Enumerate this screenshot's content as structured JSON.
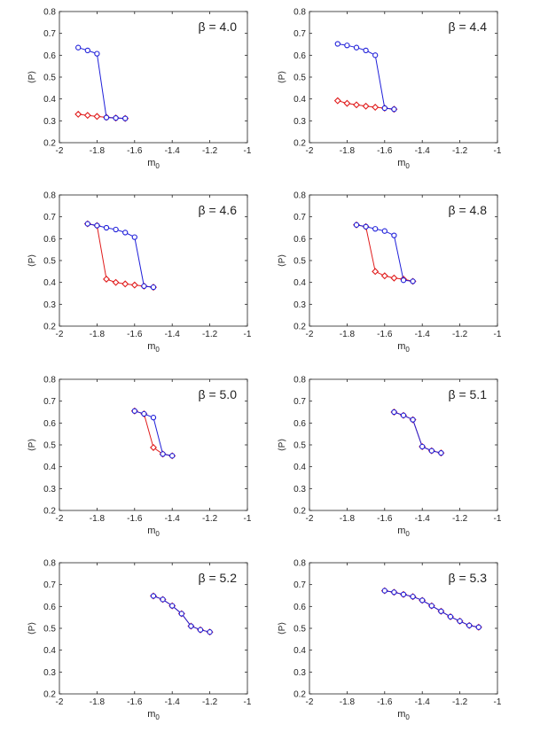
{
  "figure": {
    "xlabel": "m",
    "xlabel_sub": "0",
    "ylabel": "⟨P⟩",
    "xlim": [
      -2,
      -1
    ],
    "ylim": [
      0.2,
      0.8
    ],
    "xticks": [
      -2,
      -1.8,
      -1.6,
      -1.4,
      -1.2,
      -1
    ],
    "xtick_labels": [
      "-2",
      "-1.8",
      "-1.6",
      "-1.4",
      "-1.2",
      "-1"
    ],
    "yticks": [
      0.2,
      0.3,
      0.4,
      0.5,
      0.6,
      0.7,
      0.8
    ],
    "ytick_labels": [
      "0.2",
      "0.3",
      "0.4",
      "0.5",
      "0.6",
      "0.7",
      "0.8"
    ],
    "colors": {
      "blue_series": "#1f1fd9",
      "red_series": "#e01b1b",
      "axes": "#222222"
    }
  },
  "chart_data": [
    {
      "type": "line",
      "title": "β = 4.0",
      "beta": "β = 4.0",
      "xlabel": "m0",
      "ylabel": "⟨P⟩",
      "xlim": [
        -2,
        -1
      ],
      "ylim": [
        0.2,
        0.8
      ],
      "series": [
        {
          "name": "blue-circles",
          "marker": "circle",
          "color": "#1f1fd9",
          "x": [
            -1.9,
            -1.85,
            -1.8,
            -1.75,
            -1.7,
            -1.65
          ],
          "y": [
            0.635,
            0.622,
            0.607,
            0.315,
            0.313,
            0.311
          ]
        },
        {
          "name": "red-diamonds",
          "marker": "diamond",
          "color": "#e01b1b",
          "x": [
            -1.9,
            -1.85,
            -1.8,
            -1.75,
            -1.7,
            -1.65
          ],
          "y": [
            0.33,
            0.325,
            0.32,
            0.316,
            0.313,
            0.311
          ]
        }
      ]
    },
    {
      "type": "line",
      "title": "β = 4.4",
      "beta": "β = 4.4",
      "xlabel": "m0",
      "ylabel": "⟨P⟩",
      "xlim": [
        -2,
        -1
      ],
      "ylim": [
        0.2,
        0.8
      ],
      "series": [
        {
          "name": "blue-circles",
          "marker": "circle",
          "color": "#1f1fd9",
          "x": [
            -1.85,
            -1.8,
            -1.75,
            -1.7,
            -1.65,
            -1.6,
            -1.55
          ],
          "y": [
            0.652,
            0.645,
            0.635,
            0.622,
            0.6,
            0.358,
            0.353
          ]
        },
        {
          "name": "red-diamonds",
          "marker": "diamond",
          "color": "#e01b1b",
          "x": [
            -1.85,
            -1.8,
            -1.75,
            -1.7,
            -1.65,
            -1.6,
            -1.55
          ],
          "y": [
            0.392,
            0.38,
            0.373,
            0.367,
            0.362,
            0.358,
            0.353
          ]
        }
      ]
    },
    {
      "type": "line",
      "title": "β = 4.6",
      "beta": "β = 4.6",
      "xlabel": "m0",
      "ylabel": "⟨P⟩",
      "xlim": [
        -2,
        -1
      ],
      "ylim": [
        0.2,
        0.8
      ],
      "series": [
        {
          "name": "blue-circles",
          "marker": "circle",
          "color": "#1f1fd9",
          "x": [
            -1.85,
            -1.8,
            -1.75,
            -1.7,
            -1.65,
            -1.6,
            -1.55,
            -1.5
          ],
          "y": [
            0.668,
            0.66,
            0.65,
            0.642,
            0.628,
            0.607,
            0.383,
            0.378
          ]
        },
        {
          "name": "red-diamonds",
          "marker": "diamond",
          "color": "#e01b1b",
          "x": [
            -1.85,
            -1.8,
            -1.75,
            -1.7,
            -1.65,
            -1.6,
            -1.55,
            -1.5
          ],
          "y": [
            0.668,
            0.66,
            0.415,
            0.4,
            0.393,
            0.388,
            0.383,
            0.378
          ]
        }
      ]
    },
    {
      "type": "line",
      "title": "β = 4.8",
      "beta": "β = 4.8",
      "xlabel": "m0",
      "ylabel": "⟨P⟩",
      "xlim": [
        -2,
        -1
      ],
      "ylim": [
        0.2,
        0.8
      ],
      "series": [
        {
          "name": "blue-circles",
          "marker": "circle",
          "color": "#1f1fd9",
          "x": [
            -1.75,
            -1.7,
            -1.65,
            -1.6,
            -1.55,
            -1.5,
            -1.45
          ],
          "y": [
            0.663,
            0.655,
            0.645,
            0.635,
            0.615,
            0.41,
            0.405
          ]
        },
        {
          "name": "red-diamonds",
          "marker": "diamond",
          "color": "#e01b1b",
          "x": [
            -1.75,
            -1.7,
            -1.65,
            -1.6,
            -1.55,
            -1.5,
            -1.45
          ],
          "y": [
            0.663,
            0.655,
            0.45,
            0.43,
            0.42,
            0.415,
            0.405
          ]
        }
      ]
    },
    {
      "type": "line",
      "title": "β = 5.0",
      "beta": "β = 5.0",
      "xlabel": "m0",
      "ylabel": "⟨P⟩",
      "xlim": [
        -2,
        -1
      ],
      "ylim": [
        0.2,
        0.8
      ],
      "series": [
        {
          "name": "blue-circles",
          "marker": "circle",
          "color": "#1f1fd9",
          "x": [
            -1.6,
            -1.55,
            -1.5,
            -1.45,
            -1.4
          ],
          "y": [
            0.655,
            0.642,
            0.625,
            0.458,
            0.45
          ]
        },
        {
          "name": "red-diamonds",
          "marker": "diamond",
          "color": "#e01b1b",
          "x": [
            -1.6,
            -1.55,
            -1.5,
            -1.45,
            -1.4
          ],
          "y": [
            0.655,
            0.642,
            0.488,
            0.458,
            0.45
          ]
        }
      ]
    },
    {
      "type": "line",
      "title": "β = 5.1",
      "beta": "β = 5.1",
      "xlabel": "m0",
      "ylabel": "⟨P⟩",
      "xlim": [
        -2,
        -1
      ],
      "ylim": [
        0.2,
        0.8
      ],
      "series": [
        {
          "name": "blue-circles",
          "marker": "circle",
          "color": "#1f1fd9",
          "x": [
            -1.55,
            -1.5,
            -1.45,
            -1.4,
            -1.35,
            -1.3
          ],
          "y": [
            0.65,
            0.635,
            0.615,
            0.492,
            0.473,
            0.463
          ]
        },
        {
          "name": "red-diamonds",
          "marker": "diamond",
          "color": "#e01b1b",
          "x": [
            -1.55,
            -1.5,
            -1.45,
            -1.4,
            -1.35,
            -1.3
          ],
          "y": [
            0.65,
            0.635,
            0.615,
            0.492,
            0.473,
            0.463
          ]
        }
      ]
    },
    {
      "type": "line",
      "title": "β = 5.2",
      "beta": "β = 5.2",
      "xlabel": "m0",
      "ylabel": "⟨P⟩",
      "xlim": [
        -2,
        -1
      ],
      "ylim": [
        0.2,
        0.8
      ],
      "series": [
        {
          "name": "blue-circles",
          "marker": "circle",
          "color": "#1f1fd9",
          "x": [
            -1.5,
            -1.45,
            -1.4,
            -1.35,
            -1.3,
            -1.25,
            -1.2
          ],
          "y": [
            0.648,
            0.632,
            0.603,
            0.567,
            0.51,
            0.493,
            0.483
          ]
        },
        {
          "name": "red-diamonds",
          "marker": "diamond",
          "color": "#e01b1b",
          "x": [
            -1.5,
            -1.45,
            -1.4,
            -1.35,
            -1.3,
            -1.25,
            -1.2
          ],
          "y": [
            0.648,
            0.632,
            0.603,
            0.567,
            0.51,
            0.493,
            0.483
          ]
        }
      ]
    },
    {
      "type": "line",
      "title": "β = 5.3",
      "beta": "β = 5.3",
      "xlabel": "m0",
      "ylabel": "⟨P⟩",
      "xlim": [
        -2,
        -1
      ],
      "ylim": [
        0.2,
        0.8
      ],
      "series": [
        {
          "name": "blue-circles",
          "marker": "circle",
          "color": "#1f1fd9",
          "x": [
            -1.6,
            -1.55,
            -1.5,
            -1.45,
            -1.4,
            -1.35,
            -1.3,
            -1.25,
            -1.2,
            -1.15,
            -1.1
          ],
          "y": [
            0.672,
            0.665,
            0.655,
            0.645,
            0.628,
            0.603,
            0.578,
            0.553,
            0.533,
            0.513,
            0.505
          ]
        },
        {
          "name": "red-diamonds",
          "marker": "diamond",
          "color": "#e01b1b",
          "x": [
            -1.6,
            -1.55,
            -1.5,
            -1.45,
            -1.4,
            -1.35,
            -1.3,
            -1.25,
            -1.2,
            -1.15,
            -1.1
          ],
          "y": [
            0.672,
            0.665,
            0.655,
            0.645,
            0.628,
            0.603,
            0.578,
            0.553,
            0.533,
            0.513,
            0.505
          ]
        }
      ]
    }
  ]
}
